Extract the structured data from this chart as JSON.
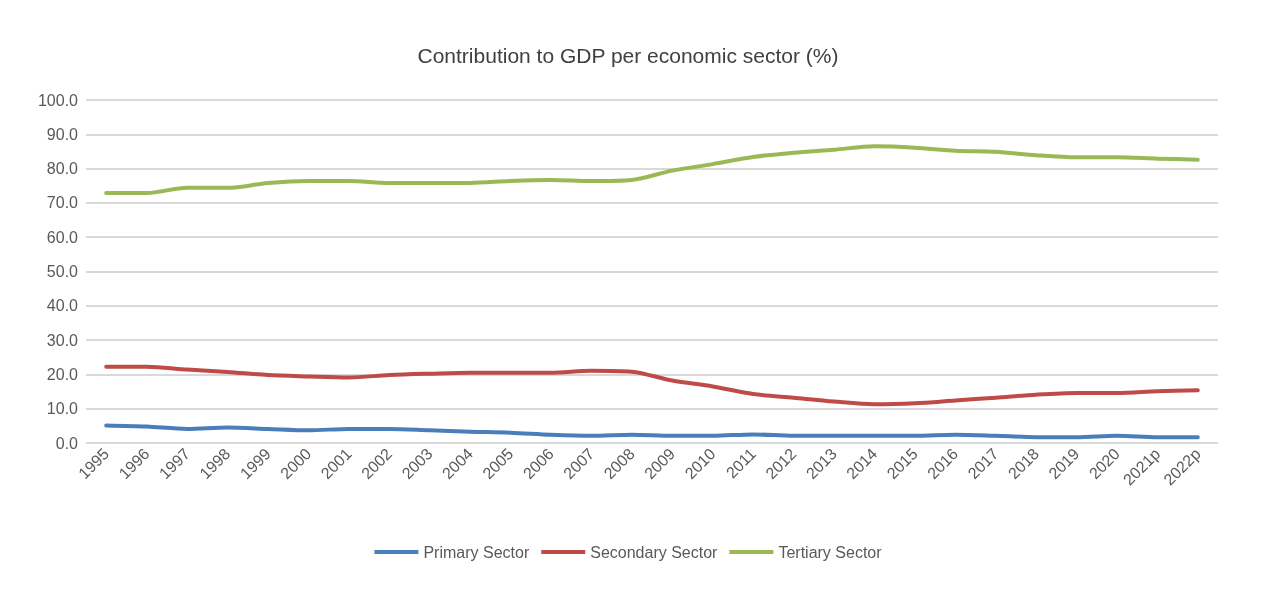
{
  "chart_data": {
    "type": "line",
    "title": "Contribution to GDP per economic sector (%)",
    "categories": [
      "1995",
      "1996",
      "1997",
      "1998",
      "1999",
      "2000",
      "2001",
      "2002",
      "2003",
      "2004",
      "2005",
      "2006",
      "2007",
      "2008",
      "2009",
      "2010",
      "2011",
      "2012",
      "2013",
      "2014",
      "2015",
      "2016",
      "2017",
      "2018",
      "2019",
      "2020",
      "2021p",
      "2022p"
    ],
    "series": [
      {
        "name": "Primary Sector",
        "color": "#4a7ebb",
        "values": [
          5.1,
          4.8,
          4.1,
          4.5,
          4.1,
          3.7,
          4.1,
          4.1,
          3.7,
          3.3,
          3.0,
          2.4,
          2.1,
          2.4,
          2.1,
          2.1,
          2.5,
          2.1,
          2.1,
          2.1,
          2.1,
          2.4,
          2.1,
          1.7,
          1.7,
          2.1,
          1.7,
          1.7
        ]
      },
      {
        "name": "Secondary Sector",
        "color": "#be4b48",
        "values": [
          22.2,
          22.2,
          21.4,
          20.7,
          19.8,
          19.4,
          19.1,
          19.8,
          20.2,
          20.5,
          20.5,
          20.5,
          21.1,
          20.8,
          18.2,
          16.5,
          14.3,
          13.2,
          12.1,
          11.3,
          11.6,
          12.4,
          13.2,
          14.1,
          14.6,
          14.6,
          15.1,
          15.4
        ]
      },
      {
        "name": "Tertiary Sector",
        "color": "#98b954",
        "values": [
          72.9,
          72.9,
          74.4,
          74.4,
          75.8,
          76.4,
          76.4,
          75.8,
          75.8,
          75.8,
          76.4,
          76.7,
          76.4,
          76.7,
          79.4,
          81.3,
          83.4,
          84.6,
          85.5,
          86.5,
          86.1,
          85.2,
          84.9,
          83.9,
          83.3,
          83.3,
          82.9,
          82.6
        ]
      }
    ],
    "ylim": [
      0,
      100
    ],
    "yticks": [
      {
        "value": 0,
        "label": "0.0"
      },
      {
        "value": 10,
        "label": "10.0"
      },
      {
        "value": 20,
        "label": "20.0"
      },
      {
        "value": 30,
        "label": "30.0"
      },
      {
        "value": 40,
        "label": "40.0"
      },
      {
        "value": 50,
        "label": "50.0"
      },
      {
        "value": 60,
        "label": "60.0"
      },
      {
        "value": 70,
        "label": "70.0"
      },
      {
        "value": 80,
        "label": "80.0"
      },
      {
        "value": 90,
        "label": "90.0"
      },
      {
        "value": 100,
        "label": "100.0"
      }
    ],
    "grid": "y",
    "legend": "bottom",
    "marker": "none",
    "line_style": "solid"
  }
}
